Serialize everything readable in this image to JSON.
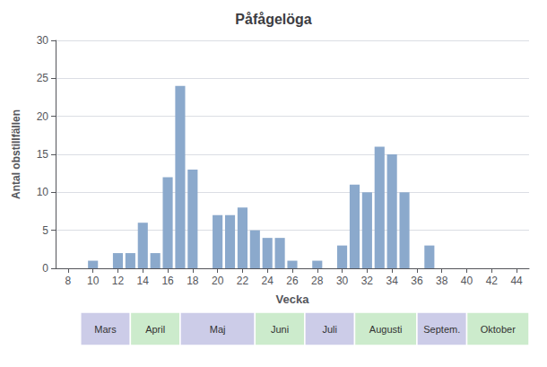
{
  "chart_data": {
    "type": "bar",
    "title": "Påfågelöga",
    "xlabel": "Vecka",
    "ylabel": "Antal obstillfällen",
    "x": [
      10,
      11,
      12,
      13,
      14,
      15,
      16,
      17,
      18,
      19,
      20,
      21,
      22,
      23,
      24,
      25,
      26,
      27,
      28,
      29,
      30,
      31,
      32,
      33,
      34,
      35,
      36,
      37
    ],
    "values": [
      1,
      0,
      2,
      2,
      6,
      2,
      12,
      24,
      13,
      0,
      7,
      7,
      8,
      5,
      4,
      4,
      1,
      0,
      1,
      0,
      3,
      11,
      10,
      16,
      15,
      10,
      0,
      3
    ],
    "color": "#8ba9cc",
    "xlim": [
      7,
      45
    ],
    "xticks": [
      8,
      10,
      12,
      14,
      16,
      18,
      20,
      22,
      24,
      26,
      28,
      30,
      32,
      34,
      36,
      38,
      40,
      42,
      44
    ],
    "ylim": [
      0,
      30
    ],
    "yticks": [
      0,
      5,
      10,
      15,
      20,
      25,
      30
    ],
    "grid": true,
    "annotations": [
      {
        "text": "Mars",
        "x_start": 9,
        "x_end": 13,
        "color": "#cccce8"
      },
      {
        "text": "April",
        "x_start": 13,
        "x_end": 17,
        "color": "#ccebcc"
      },
      {
        "text": "Maj",
        "x_start": 17,
        "x_end": 23,
        "color": "#cccce8"
      },
      {
        "text": "Juni",
        "x_start": 23,
        "x_end": 27,
        "color": "#ccebcc"
      },
      {
        "text": "Juli",
        "x_start": 27,
        "x_end": 31,
        "color": "#cccce8"
      },
      {
        "text": "Augusti",
        "x_start": 31,
        "x_end": 36,
        "color": "#ccebcc"
      },
      {
        "text": "Septem.",
        "x_start": 36,
        "x_end": 40,
        "color": "#cccce8"
      },
      {
        "text": "Oktober",
        "x_start": 40,
        "x_end": 45,
        "color": "#ccebcc"
      }
    ]
  }
}
